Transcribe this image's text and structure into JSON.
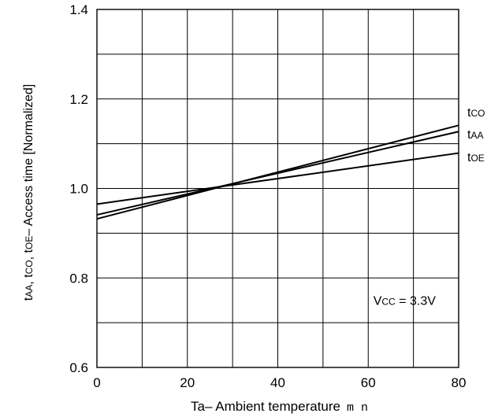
{
  "chart_data": {
    "type": "line",
    "x_tick_labels": [
      "0",
      "20",
      "40",
      "60",
      "80"
    ],
    "y_tick_labels": [
      "0.6",
      "0.8",
      "1.0",
      "1.2",
      "1.4"
    ],
    "xlim": [
      0,
      80
    ],
    "ylim": [
      0.6,
      1.4
    ],
    "grid": true,
    "xlabel": "Ta– Ambient temperature",
    "xlabel_unit": "m  n",
    "ylabel": "tAA, tCO, tOE– Access time [Normalized]",
    "ylabel_parts": [
      {
        "main": "t",
        "sub": "AA"
      },
      {
        "main": ", t",
        "sub": "CO"
      },
      {
        "main": ", t",
        "sub": "OE"
      },
      {
        "main": "– Access time [Normalized]",
        "sub": ""
      }
    ],
    "series": [
      {
        "name": "tCO",
        "label_main": "t",
        "label_sub": "CO",
        "x": [
          0,
          80
        ],
        "y": [
          0.932,
          1.141
        ]
      },
      {
        "name": "tAA",
        "label_main": "t",
        "label_sub": "AA",
        "x": [
          0,
          80
        ],
        "y": [
          0.941,
          1.127
        ]
      },
      {
        "name": "tOE",
        "label_main": "t",
        "label_sub": "OE",
        "x": [
          0,
          80
        ],
        "y": [
          0.965,
          1.079
        ]
      }
    ],
    "annotation": {
      "main": "V",
      "sub": "CC",
      "rest": " = 3.3V",
      "x": 62,
      "y": 0.75
    }
  }
}
